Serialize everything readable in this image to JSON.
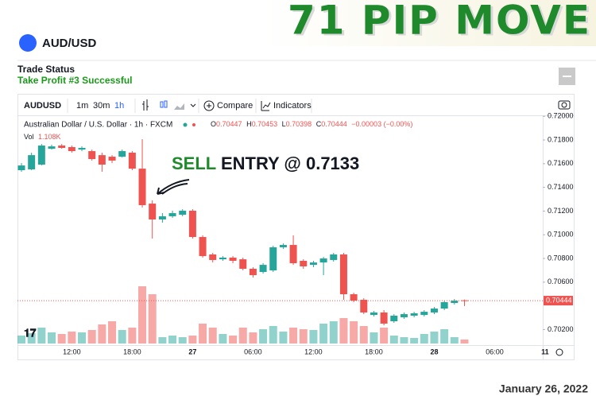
{
  "banner": "71 PIP MOVE",
  "symbol_header": "AUD/USD",
  "trade_status": {
    "label": "Trade Status",
    "status": "Take Profit #3 Successful"
  },
  "toolbar": {
    "symbol": "AUDUSD",
    "intervals": [
      "1m",
      "30m",
      "1h"
    ],
    "compare": "Compare",
    "indicators": "Indicators"
  },
  "chart_data": {
    "type": "candlestick",
    "title": "Australian Dollar / U.S. Dollar · 1h · FXCM",
    "ohlc_labels": [
      "O",
      "H",
      "L",
      "C"
    ],
    "change_label": "−0.00003 (−0.00%)",
    "volume_name": "Vol",
    "up_color": "#26a69a",
    "down_color": "#ef5350",
    "categories": [
      null,
      null,
      null,
      null,
      null,
      "12:00",
      null,
      null,
      null,
      null,
      null,
      "18:00",
      null,
      null,
      null,
      null,
      null,
      "27",
      null,
      null,
      null,
      null,
      null,
      "06:00",
      null,
      null,
      null,
      null,
      null,
      "12:00",
      null,
      null,
      null,
      null,
      null,
      "18:00",
      null,
      null,
      null,
      null,
      null,
      "28",
      null,
      null,
      null,
      null,
      null,
      "06:00",
      null,
      null,
      null,
      null,
      "11"
    ],
    "open": [
      0.71545,
      0.71552,
      0.71592,
      0.71726,
      0.71753,
      0.7174,
      0.71719,
      0.71706,
      0.71672,
      0.71659,
      0.71659,
      0.71693,
      0.71558,
      0.71263,
      0.71129,
      0.71156,
      0.71169,
      0.71203,
      0.70981,
      0.70834,
      0.70793,
      0.70807,
      0.70793,
      0.70713,
      0.70686,
      0.70699,
      0.70894,
      0.70914,
      0.7078,
      0.70746,
      0.70766,
      0.70787,
      0.70834,
      0.70498,
      0.70451,
      0.70323,
      0.70344,
      0.7027,
      0.70303,
      0.70317,
      0.70323,
      0.70344,
      0.70377,
      0.70424,
      0.70447,
      null,
      null,
      null,
      null,
      null,
      null,
      null,
      null
    ],
    "high": [
      0.71605,
      0.71693,
      0.71766,
      0.7176,
      0.71766,
      0.71753,
      0.71746,
      0.71719,
      0.71693,
      0.71672,
      0.71719,
      0.71706,
      0.71807,
      0.7129,
      0.71183,
      0.71203,
      0.71216,
      0.71216,
      0.70995,
      0.70847,
      0.7082,
      0.7082,
      0.70807,
      0.70726,
      0.7076,
      0.70907,
      0.70927,
      0.70995,
      0.70793,
      0.7078,
      0.70813,
      0.70847,
      0.70847,
      0.70511,
      0.70464,
      0.70357,
      0.70364,
      0.7033,
      0.70344,
      0.7035,
      0.70364,
      0.7039,
      0.70444,
      0.70458,
      0.70453,
      null,
      null,
      null,
      null,
      null,
      null,
      null,
      null
    ],
    "low": [
      0.71532,
      0.71545,
      0.71585,
      0.71719,
      0.71726,
      0.71693,
      0.71706,
      0.71626,
      0.71532,
      0.71605,
      0.71652,
      0.71545,
      0.7123,
      0.70968,
      0.71102,
      0.71143,
      0.71156,
      0.70968,
      0.70807,
      0.70766,
      0.7078,
      0.7076,
      0.70699,
      0.70639,
      0.70672,
      0.70686,
      0.7088,
      0.70746,
      0.70713,
      0.70726,
      0.70659,
      0.70773,
      0.70451,
      0.70431,
      0.7033,
      0.7031,
      0.70236,
      0.70256,
      0.7029,
      0.70303,
      0.7031,
      0.7033,
      0.70364,
      0.70411,
      0.70398,
      null,
      null,
      null,
      null,
      null,
      null,
      null,
      null
    ],
    "close": [
      0.71585,
      0.71672,
      0.71753,
      0.71746,
      0.71733,
      0.71706,
      0.71733,
      0.71639,
      0.71592,
      0.71626,
      0.71706,
      0.71558,
      0.7125,
      0.71129,
      0.71156,
      0.71183,
      0.71203,
      0.70981,
      0.7082,
      0.70787,
      0.70807,
      0.7078,
      0.70713,
      0.70659,
      0.70746,
      0.70894,
      0.70914,
      0.7076,
      0.70733,
      0.70766,
      0.708,
      0.70834,
      0.70498,
      0.70444,
      0.70344,
      0.70344,
      0.7025,
      0.70317,
      0.7033,
      0.70337,
      0.7035,
      0.70377,
      0.70431,
      0.70444,
      0.70444,
      null,
      null,
      null,
      null,
      null,
      null,
      null,
      null
    ],
    "volume": [
      2200,
      2860,
      4400,
      3080,
      2640,
      3300,
      3080,
      3740,
      5280,
      6160,
      3740,
      4400,
      15840,
      13640,
      1760,
      2200,
      1760,
      2200,
      5500,
      4400,
      2640,
      2200,
      4400,
      3080,
      3960,
      4840,
      3300,
      4400,
      3960,
      3740,
      5500,
      6160,
      7040,
      6160,
      4840,
      3080,
      4400,
      2200,
      1760,
      1540,
      2640,
      3300,
      3960,
      1760,
      1108,
      null,
      null,
      null,
      null,
      null,
      null,
      null,
      null
    ],
    "volume_value_labels": [
      null,
      null,
      null,
      null,
      null,
      null,
      null,
      null,
      null,
      null,
      null,
      null,
      null,
      null,
      null,
      null,
      null,
      null,
      null,
      null,
      null,
      null,
      null,
      null,
      null,
      null,
      null,
      null,
      null,
      null,
      null,
      null,
      null,
      null,
      null,
      null,
      null,
      null,
      null,
      null,
      null,
      null,
      null,
      null,
      "1.108K",
      null,
      null,
      null,
      null,
      null,
      null,
      null,
      null
    ],
    "ylim": [
      0.70082,
      0.72015
    ],
    "yticks": [
      {
        "value": 0.702,
        "label": "0.70200"
      },
      {
        "value": 0.706,
        "label": "0.70600"
      },
      {
        "value": 0.708,
        "label": "0.70800"
      },
      {
        "value": 0.71,
        "label": "0.71000"
      },
      {
        "value": 0.712,
        "label": "0.71200"
      },
      {
        "value": 0.714,
        "label": "0.71400"
      },
      {
        "value": 0.716,
        "label": "0.71600"
      },
      {
        "value": 0.718,
        "label": "0.71800"
      },
      {
        "value": 0.72,
        "label": "0.72000"
      }
    ],
    "annotation": {
      "action": "SELL",
      "text": "ENTRY @ 0.7133"
    }
  },
  "date": "January 26, 2022"
}
